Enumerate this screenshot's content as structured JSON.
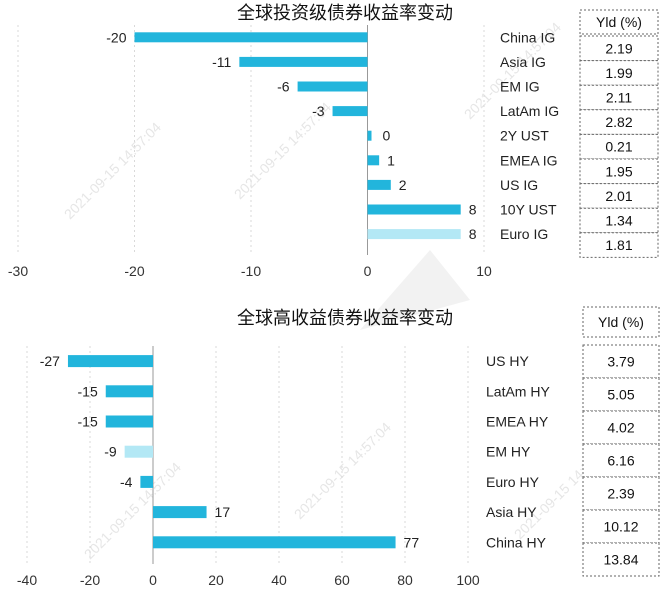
{
  "chart_data": [
    {
      "type": "bar",
      "orientation": "horizontal",
      "title": "全球投资级债券收益率变动",
      "categories": [
        "China IG",
        "Asia IG",
        "EM IG",
        "LatAm IG",
        "2Y UST",
        "EMEA IG",
        "US IG",
        "10Y UST",
        "Euro IG"
      ],
      "values": [
        -20,
        -11,
        -6,
        -3,
        0,
        1,
        2,
        8,
        8
      ],
      "value_labels": [
        "-20",
        "-11",
        "-6",
        "-3",
        "0",
        "1",
        "2",
        "8",
        "8"
      ],
      "highlight_index": 8,
      "xlim": [
        -30,
        10
      ],
      "xticks": [
        -30,
        -20,
        -10,
        0,
        10
      ],
      "xtick_labels": [
        "-30",
        "-20",
        "-10",
        "0",
        "10"
      ],
      "table_header": "Yld (%)",
      "yld": [
        "2.19",
        "1.99",
        "2.11",
        "2.82",
        "0.21",
        "1.95",
        "2.01",
        "1.34",
        "1.81"
      ]
    },
    {
      "type": "bar",
      "orientation": "horizontal",
      "title": "全球高收益债券收益率变动",
      "categories": [
        "US HY",
        "LatAm HY",
        "EMEA HY",
        "EM HY",
        "Euro HY",
        "Asia HY",
        "China HY"
      ],
      "values": [
        -27,
        -15,
        -15,
        -9,
        -4,
        17,
        77
      ],
      "value_labels": [
        "-27",
        "-15",
        "-15",
        "-9",
        "-4",
        "17",
        "77"
      ],
      "highlight_index": 3,
      "xlim": [
        -40,
        100
      ],
      "xticks": [
        -40,
        -20,
        0,
        20,
        40,
        60,
        80,
        100
      ],
      "xtick_labels": [
        "-40",
        "-20",
        "0",
        "20",
        "40",
        "60",
        "80",
        "100"
      ],
      "table_header": "Yld (%)",
      "yld": [
        "3.79",
        "5.05",
        "4.02",
        "6.16",
        "2.39",
        "10.12",
        "13.84"
      ]
    }
  ],
  "colors": {
    "bar": "#22b5dc",
    "highlight": "#b3e8f5"
  },
  "watermark": "2021-09-15 14:57:04"
}
